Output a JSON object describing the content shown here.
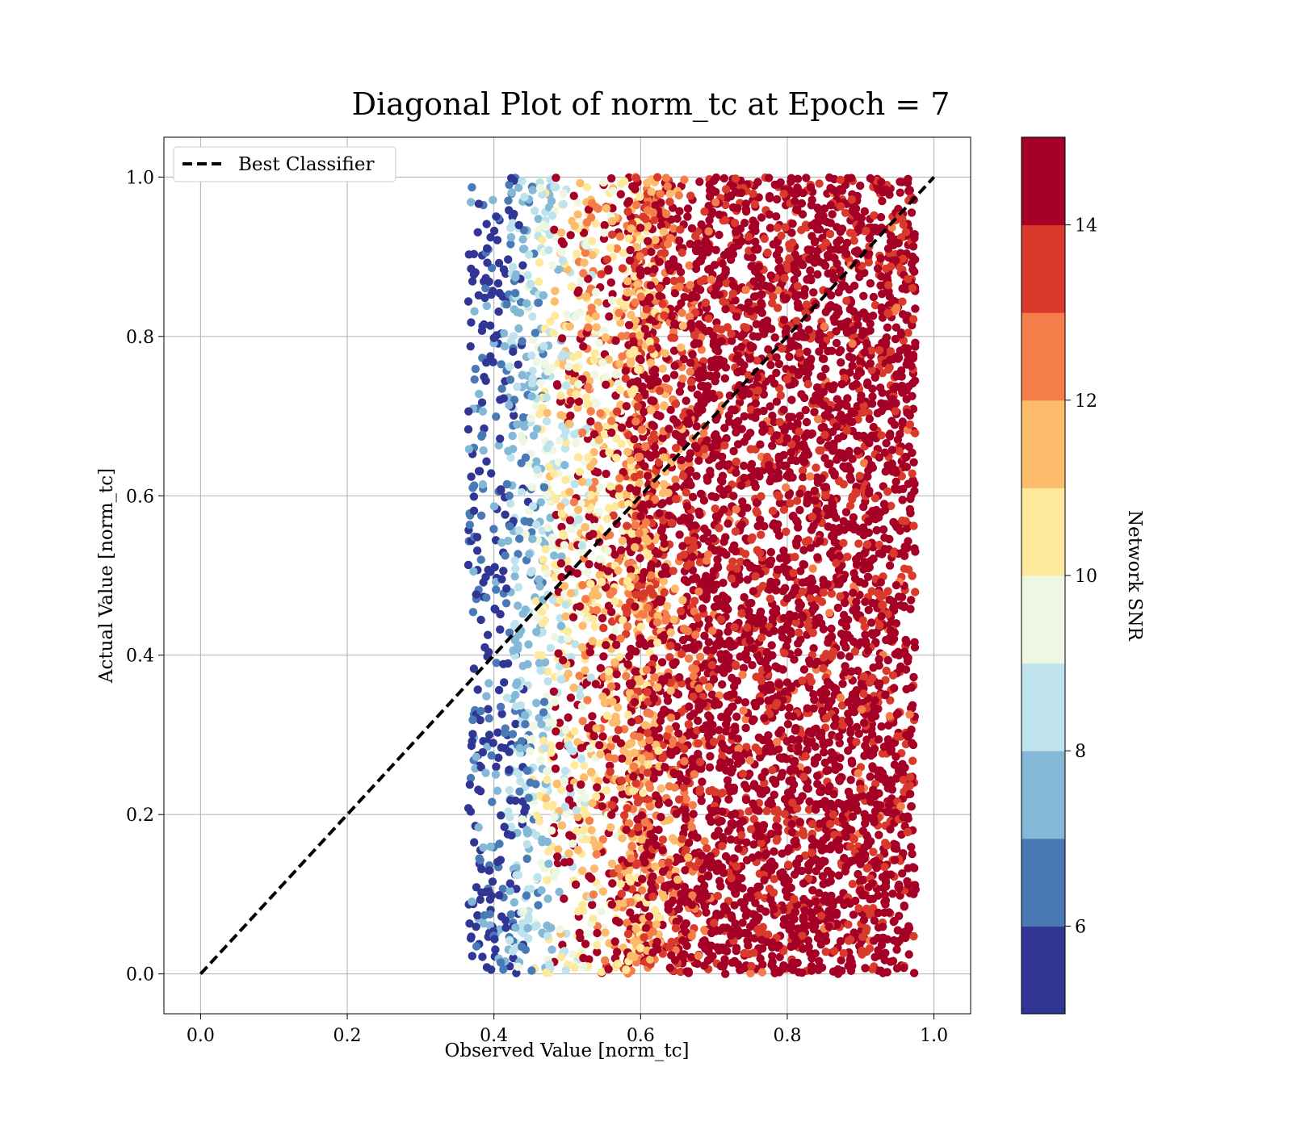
{
  "chart_data": {
    "type": "scatter",
    "title": "Diagonal Plot of norm_tc at Epoch = 7",
    "xlabel": "Observed Value [norm_tc]",
    "ylabel": "Actual Value [norm_tc]",
    "xlim": [
      -0.05,
      1.05
    ],
    "ylim": [
      -0.05,
      1.05
    ],
    "x_ticks": [
      "0.0",
      "0.2",
      "0.4",
      "0.6",
      "0.8",
      "1.0"
    ],
    "y_ticks": [
      "0.0",
      "0.2",
      "0.4",
      "0.6",
      "0.8",
      "1.0"
    ],
    "grid": true,
    "legend": {
      "position": "top-left",
      "entries": [
        "Best Classifier"
      ]
    },
    "reference_line": {
      "name": "Best Classifier",
      "style": "dashed",
      "color": "#000000",
      "x": [
        0.0,
        1.0
      ],
      "y": [
        0.0,
        1.0
      ]
    },
    "scatter": {
      "x_range": [
        0.36,
        0.99
      ],
      "y_range": [
        0.0,
        1.0
      ],
      "color_by": "Network SNR",
      "description_of_gradient": [
        {
          "x": 0.4,
          "snr": 5.5
        },
        {
          "x": 0.44,
          "snr": 7.5
        },
        {
          "x": 0.48,
          "snr": 9.5
        },
        {
          "x": 0.53,
          "snr": 10.8
        },
        {
          "x": 0.58,
          "snr": 11.8
        },
        {
          "x": 0.62,
          "snr": 12.8
        },
        {
          "x": 0.66,
          "snr": 13.8
        },
        {
          "x": 0.7,
          "snr": 15.0
        },
        {
          "x": 0.98,
          "snr": 15.0
        }
      ]
    },
    "colorbar": {
      "label": "Network SNR",
      "range": [
        5,
        15
      ],
      "tick_values": [
        6,
        8,
        10,
        12,
        14
      ],
      "tick_labels": [
        "6",
        "8",
        "10",
        "12",
        "14"
      ],
      "colors": [
        "#313695",
        "#4a7ab6",
        "#83b8d7",
        "#bee3ed",
        "#eef7e1",
        "#fee99c",
        "#fdbb6c",
        "#f47d4a",
        "#d93a2b",
        "#a50026"
      ]
    }
  }
}
